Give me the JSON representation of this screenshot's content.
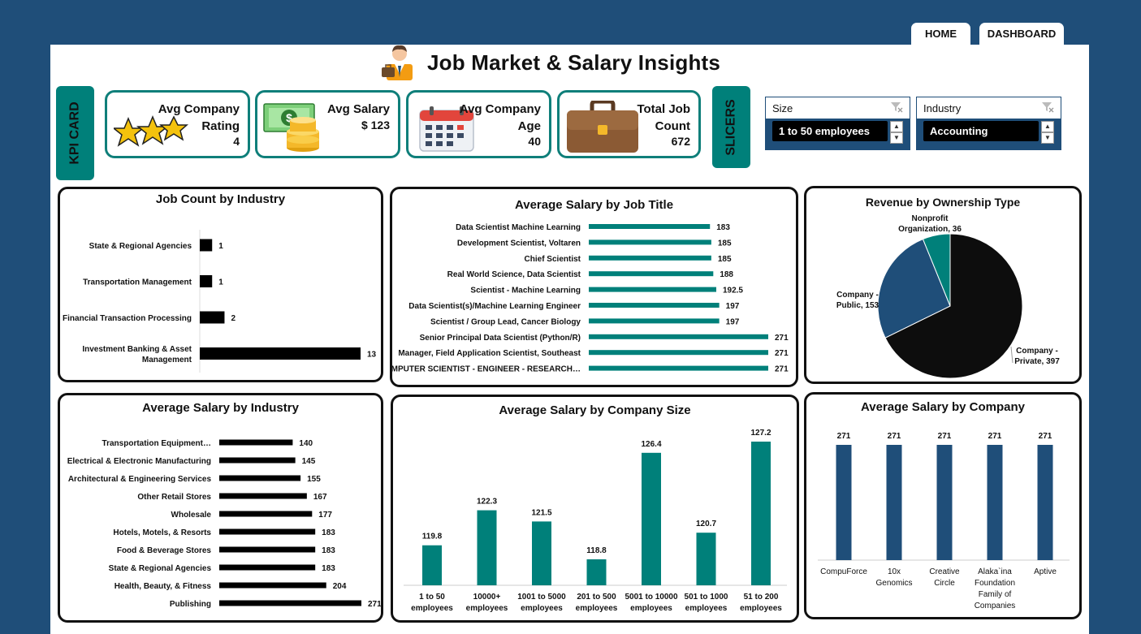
{
  "nav": {
    "home": "HOME",
    "dashboard": "DASHBOARD"
  },
  "page_title": "Job Market & Salary Insights",
  "kpi_tab": "KPI CARD",
  "slicers_tab": "SLICERS",
  "kpis": {
    "rating": {
      "l1": "Avg Company",
      "l2": "Rating",
      "value": "4"
    },
    "salary": {
      "l1": "Avg Salary",
      "value": "$ 123"
    },
    "age": {
      "l1": "Avg Company",
      "l2": "Age",
      "value": "40"
    },
    "jobs": {
      "l1": "Total Job",
      "l2": "Count",
      "value": "672"
    }
  },
  "slicers": {
    "size": {
      "label": "Size",
      "selected": "1 to 50 employees"
    },
    "industry": {
      "label": "Industry",
      "selected": "Accounting"
    }
  },
  "colors": {
    "accent": "#00807a",
    "navy": "#1f4e79",
    "bar": "#000000"
  },
  "chart_data": [
    {
      "id": "job_count_by_industry",
      "type": "bar",
      "orientation": "horizontal",
      "title": "Job Count by Industry",
      "categories": [
        "State & Regional Agencies",
        "Transportation Management",
        "Financial Transaction Processing",
        "Investment Banking & Asset Management"
      ],
      "values": [
        1,
        1,
        2,
        13
      ]
    },
    {
      "id": "avg_salary_by_job_title",
      "type": "bar",
      "orientation": "horizontal",
      "title": "Average Salary by Job Title",
      "categories": [
        "Data Scientist Machine Learning",
        "Development Scientist, Voltaren",
        "Chief Scientist",
        "Real World Science, Data Scientist",
        "Scientist - Machine Learning",
        "Data Scientist(s)/Machine Learning Engineer",
        "Scientist / Group Lead, Cancer Biology",
        "Senior Principal Data Scientist (Python/R)",
        "Manager, Field Application Scientist, Southeast",
        "COMPUTER SCIENTIST - ENGINEER - RESEARCH…"
      ],
      "values": [
        183,
        185,
        185,
        188,
        192.5,
        197,
        197,
        271,
        271,
        271
      ]
    },
    {
      "id": "revenue_by_ownership",
      "type": "pie",
      "title": "Revenue by Ownership Type",
      "labels": [
        "Company - Private",
        "Company - Public",
        "Nonprofit Organization"
      ],
      "label_lines": [
        [
          "Company -",
          "Private, 397"
        ],
        [
          "Company -",
          "Public, 153"
        ],
        [
          "Nonprofit",
          "Organization, 36"
        ]
      ],
      "values": [
        397,
        153,
        36
      ],
      "colors": [
        "#0d0d0d",
        "#1f4e79",
        "#00807a"
      ]
    },
    {
      "id": "avg_salary_by_industry",
      "type": "bar",
      "orientation": "horizontal",
      "title": "Average Salary by Industry",
      "categories": [
        "Transportation Equipment…",
        "Electrical & Electronic Manufacturing",
        "Architectural & Engineering Services",
        "Other Retail Stores",
        "Wholesale",
        "Hotels, Motels, & Resorts",
        "Food & Beverage Stores",
        "State & Regional Agencies",
        "Health, Beauty, & Fitness",
        "Publishing"
      ],
      "values": [
        140,
        145,
        155,
        167,
        177,
        183,
        183,
        183,
        204,
        271
      ]
    },
    {
      "id": "avg_salary_by_company_size",
      "type": "bar",
      "orientation": "vertical",
      "title": "Average Salary by Company Size",
      "categories": [
        [
          "1 to 50",
          "employees"
        ],
        [
          "10000+",
          "employees"
        ],
        [
          "1001 to 5000",
          "employees"
        ],
        [
          "201 to 500",
          "employees"
        ],
        [
          "5001 to 10000",
          "employees"
        ],
        [
          "501 to 1000",
          "employees"
        ],
        [
          "51 to 200",
          "employees"
        ]
      ],
      "values": [
        119.8,
        122.3,
        121.5,
        118.8,
        126.4,
        120.7,
        127.2
      ]
    },
    {
      "id": "avg_salary_by_company",
      "type": "bar",
      "orientation": "vertical",
      "title": "Average Salary by Company",
      "categories": [
        [
          "CompuForce"
        ],
        [
          "10x",
          "Genomics"
        ],
        [
          "Creative",
          "Circle"
        ],
        [
          "Alaka`ina",
          "Foundation",
          "Family of",
          "Companies"
        ],
        [
          "Aptive"
        ]
      ],
      "values": [
        271,
        271,
        271,
        271,
        271
      ]
    }
  ]
}
